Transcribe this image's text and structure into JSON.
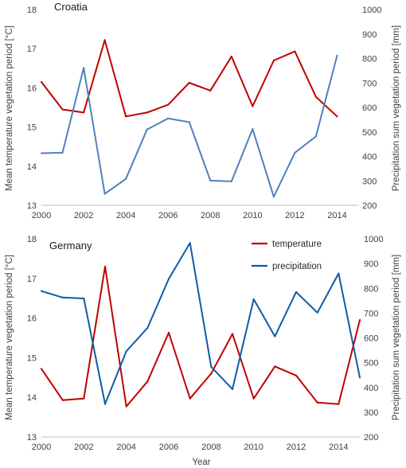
{
  "chart_data": [
    {
      "type": "line",
      "title": "Croatia",
      "xlabel": "",
      "ylabel_left": "Mean temperature vegetation period [°C]",
      "ylabel_right": "Precipitation sum vegetation period [mm]",
      "xlim": [
        2000,
        2015
      ],
      "ylim_left": [
        13,
        18
      ],
      "ylim_right": [
        200,
        1000
      ],
      "x_ticks": [
        2000,
        2002,
        2004,
        2006,
        2008,
        2010,
        2012,
        2014
      ],
      "y_left_ticks": [
        13,
        14,
        15,
        16,
        17,
        18
      ],
      "y_right_ticks": [
        200,
        300,
        400,
        500,
        600,
        700,
        800,
        900,
        1000
      ],
      "grid": false,
      "legend": false,
      "series": [
        {
          "axis": "left",
          "color": "#c00000",
          "x": [
            2000,
            2001,
            2002,
            2003,
            2004,
            2005,
            2006,
            2007,
            2008,
            2009,
            2010,
            2011,
            2012,
            2013,
            2014
          ],
          "values": [
            16.15,
            15.45,
            15.37,
            17.22,
            15.27,
            15.37,
            15.57,
            16.13,
            15.93,
            16.8,
            15.53,
            16.7,
            16.93,
            15.77,
            15.27
          ]
        },
        {
          "axis": "right",
          "color": "#4f81bd",
          "x": [
            2000,
            2001,
            2002,
            2003,
            2004,
            2005,
            2006,
            2007,
            2008,
            2009,
            2010,
            2011,
            2012,
            2013,
            2014
          ],
          "values": [
            413,
            415,
            762,
            247,
            308,
            510,
            555,
            540,
            301,
            298,
            512,
            235,
            415,
            482,
            812
          ]
        }
      ]
    },
    {
      "type": "line",
      "title": "Germany",
      "xlabel": "Year",
      "ylabel_left": "Mean temperature vegetation period [°C]",
      "ylabel_right": "Precipitation sum vegetation period [mm]",
      "xlim": [
        2000,
        2015
      ],
      "ylim_left": [
        13,
        18
      ],
      "ylim_right": [
        200,
        1000
      ],
      "x_ticks": [
        2000,
        2002,
        2004,
        2006,
        2008,
        2010,
        2012,
        2014
      ],
      "y_left_ticks": [
        13,
        14,
        15,
        16,
        17,
        18
      ],
      "y_right_ticks": [
        200,
        300,
        400,
        500,
        600,
        700,
        800,
        900,
        1000
      ],
      "grid": false,
      "legend": "top-right",
      "series": [
        {
          "name": "temperature",
          "axis": "left",
          "color": "#c00000",
          "x": [
            2000,
            2001,
            2002,
            2003,
            2004,
            2005,
            2006,
            2007,
            2008,
            2009,
            2010,
            2011,
            2012,
            2013,
            2014,
            2015
          ],
          "values": [
            14.72,
            13.93,
            13.97,
            17.3,
            13.77,
            14.4,
            15.63,
            13.97,
            14.6,
            15.6,
            13.97,
            14.78,
            14.55,
            13.87,
            13.83,
            15.95
          ]
        },
        {
          "name": "precipitation",
          "axis": "right",
          "color": "#0d5ba8",
          "x": [
            2000,
            2001,
            2002,
            2003,
            2004,
            2005,
            2006,
            2007,
            2008,
            2009,
            2010,
            2011,
            2012,
            2013,
            2014,
            2015
          ],
          "values": [
            789,
            763,
            759,
            333,
            546,
            640,
            838,
            983,
            483,
            393,
            756,
            606,
            785,
            702,
            860,
            440
          ]
        }
      ]
    }
  ]
}
